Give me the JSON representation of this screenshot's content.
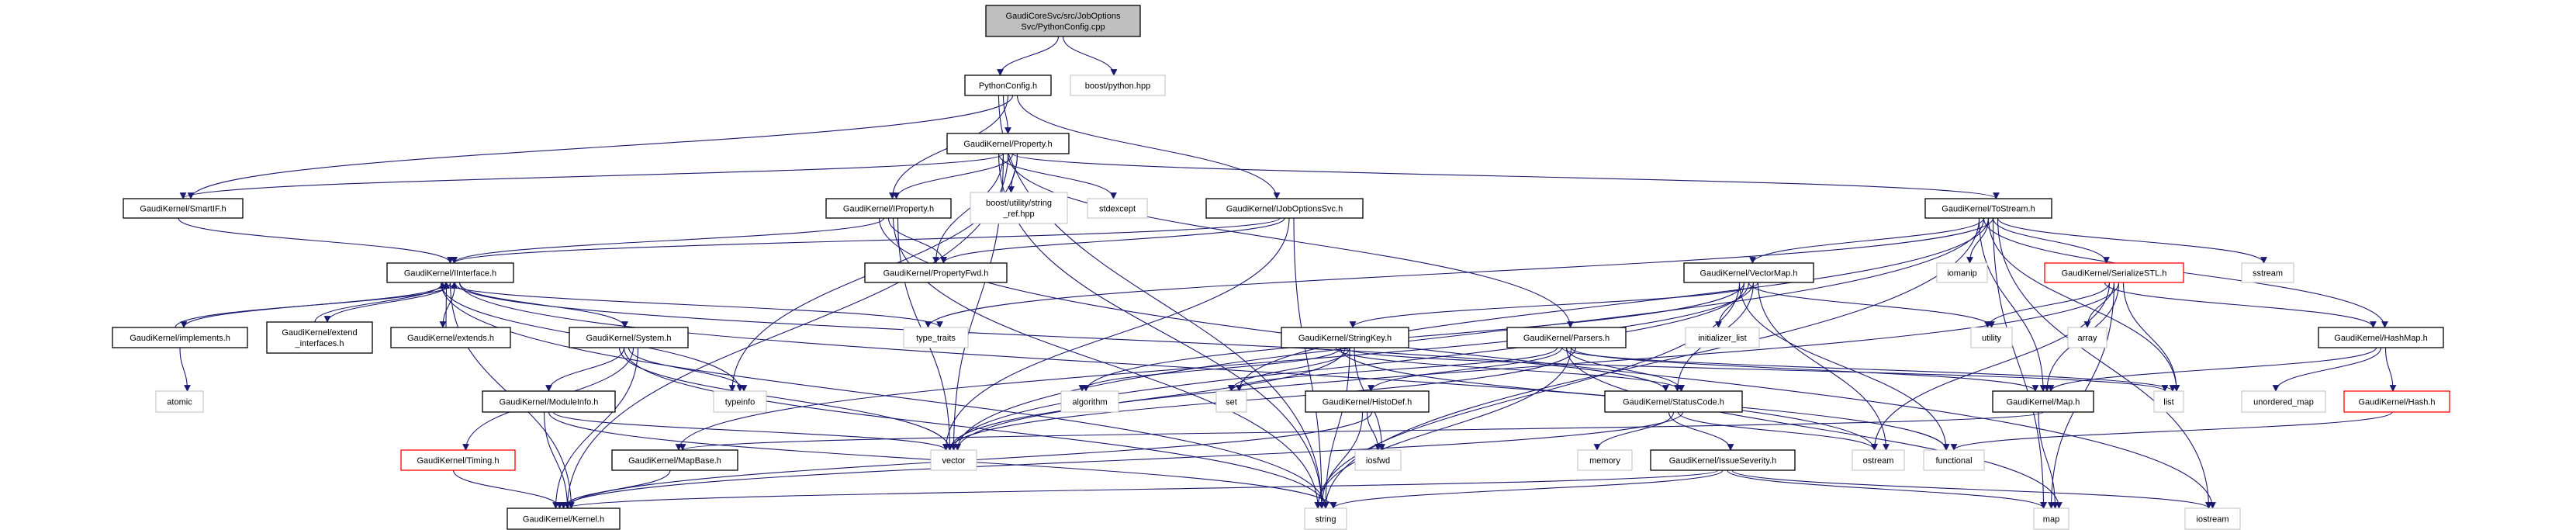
{
  "graph": {
    "edge_color": "#191970",
    "colors": {
      "root_fill": "#bfbfbf",
      "documented_border": "#000000",
      "external_border": "#bfbfbf",
      "incomplete_border": "#ff0000"
    },
    "nodes": [
      {
        "id": "root",
        "label": [
          "GaudiCoreSvc/src/JobOptions",
          "Svc/PythonConfig.cpp"
        ],
        "kind": "root"
      },
      {
        "id": "pyconf",
        "label": [
          "PythonConfig.h"
        ],
        "kind": "doc"
      },
      {
        "id": "boostpy",
        "label": [
          "boost/python.hpp"
        ],
        "kind": "ext"
      },
      {
        "id": "property",
        "label": [
          "GaudiKernel/Property.h"
        ],
        "kind": "doc"
      },
      {
        "id": "smartif",
        "label": [
          "GaudiKernel/SmartIF.h"
        ],
        "kind": "doc"
      },
      {
        "id": "iproperty",
        "label": [
          "GaudiKernel/IProperty.h"
        ],
        "kind": "doc"
      },
      {
        "id": "stringref",
        "label": [
          "boost/utility/string",
          "_ref.hpp"
        ],
        "kind": "ext"
      },
      {
        "id": "stdexcept",
        "label": [
          "stdexcept"
        ],
        "kind": "ext"
      },
      {
        "id": "ijobopt",
        "label": [
          "GaudiKernel/IJobOptionsSvc.h"
        ],
        "kind": "doc"
      },
      {
        "id": "tostream",
        "label": [
          "GaudiKernel/ToStream.h"
        ],
        "kind": "doc"
      },
      {
        "id": "iinterface",
        "label": [
          "GaudiKernel/IInterface.h"
        ],
        "kind": "doc"
      },
      {
        "id": "propfwd",
        "label": [
          "GaudiKernel/PropertyFwd.h"
        ],
        "kind": "doc"
      },
      {
        "id": "vectormap",
        "label": [
          "GaudiKernel/VectorMap.h"
        ],
        "kind": "doc"
      },
      {
        "id": "iomanip",
        "label": [
          "iomanip"
        ],
        "kind": "ext"
      },
      {
        "id": "serialize",
        "label": [
          "GaudiKernel/SerializeSTL.h"
        ],
        "kind": "red"
      },
      {
        "id": "sstream",
        "label": [
          "sstream"
        ],
        "kind": "ext"
      },
      {
        "id": "implements",
        "label": [
          "GaudiKernel/implements.h"
        ],
        "kind": "doc"
      },
      {
        "id": "extendif",
        "label": [
          "GaudiKernel/extend",
          "_interfaces.h"
        ],
        "kind": "doc"
      },
      {
        "id": "extends",
        "label": [
          "GaudiKernel/extends.h"
        ],
        "kind": "doc"
      },
      {
        "id": "system",
        "label": [
          "GaudiKernel/System.h"
        ],
        "kind": "doc"
      },
      {
        "id": "typetraits",
        "label": [
          "type_traits"
        ],
        "kind": "ext"
      },
      {
        "id": "stringkey",
        "label": [
          "GaudiKernel/StringKey.h"
        ],
        "kind": "doc"
      },
      {
        "id": "parsers",
        "label": [
          "GaudiKernel/Parsers.h"
        ],
        "kind": "doc"
      },
      {
        "id": "initlist",
        "label": [
          "initializer_list"
        ],
        "kind": "ext"
      },
      {
        "id": "utility",
        "label": [
          "utility"
        ],
        "kind": "ext"
      },
      {
        "id": "array",
        "label": [
          "array"
        ],
        "kind": "ext"
      },
      {
        "id": "hashmap",
        "label": [
          "GaudiKernel/HashMap.h"
        ],
        "kind": "doc"
      },
      {
        "id": "atomic",
        "label": [
          "atomic"
        ],
        "kind": "ext"
      },
      {
        "id": "moduleinfo",
        "label": [
          "GaudiKernel/ModuleInfo.h"
        ],
        "kind": "doc"
      },
      {
        "id": "typeinfo",
        "label": [
          "typeinfo"
        ],
        "kind": "ext"
      },
      {
        "id": "algorithm",
        "label": [
          "algorithm"
        ],
        "kind": "ext"
      },
      {
        "id": "set",
        "label": [
          "set"
        ],
        "kind": "ext"
      },
      {
        "id": "histodef",
        "label": [
          "GaudiKernel/HistoDef.h"
        ],
        "kind": "doc"
      },
      {
        "id": "statuscode",
        "label": [
          "GaudiKernel/StatusCode.h"
        ],
        "kind": "doc"
      },
      {
        "id": "map_h",
        "label": [
          "GaudiKernel/Map.h"
        ],
        "kind": "doc"
      },
      {
        "id": "list",
        "label": [
          "list"
        ],
        "kind": "ext"
      },
      {
        "id": "unorderedmap",
        "label": [
          "unordered_map"
        ],
        "kind": "ext"
      },
      {
        "id": "hash",
        "label": [
          "GaudiKernel/Hash.h"
        ],
        "kind": "red"
      },
      {
        "id": "timing",
        "label": [
          "GaudiKernel/Timing.h"
        ],
        "kind": "red"
      },
      {
        "id": "mapbase",
        "label": [
          "GaudiKernel/MapBase.h"
        ],
        "kind": "doc"
      },
      {
        "id": "vector",
        "label": [
          "vector"
        ],
        "kind": "ext"
      },
      {
        "id": "iosfwd",
        "label": [
          "iosfwd"
        ],
        "kind": "ext"
      },
      {
        "id": "memory",
        "label": [
          "memory"
        ],
        "kind": "ext"
      },
      {
        "id": "issuesev",
        "label": [
          "GaudiKernel/IssueSeverity.h"
        ],
        "kind": "doc"
      },
      {
        "id": "ostream",
        "label": [
          "ostream"
        ],
        "kind": "ext"
      },
      {
        "id": "functional",
        "label": [
          "functional"
        ],
        "kind": "ext"
      },
      {
        "id": "kernel",
        "label": [
          "GaudiKernel/Kernel.h"
        ],
        "kind": "doc"
      },
      {
        "id": "string",
        "label": [
          "string"
        ],
        "kind": "ext"
      },
      {
        "id": "map",
        "label": [
          "map"
        ],
        "kind": "ext"
      },
      {
        "id": "iostream",
        "label": [
          "iostream"
        ],
        "kind": "ext"
      }
    ],
    "edges": [
      [
        "root",
        "pyconf"
      ],
      [
        "root",
        "boostpy"
      ],
      [
        "pyconf",
        "property"
      ],
      [
        "pyconf",
        "iproperty"
      ],
      [
        "pyconf",
        "smartif"
      ],
      [
        "pyconf",
        "ijobopt"
      ],
      [
        "pyconf",
        "string"
      ],
      [
        "property",
        "smartif"
      ],
      [
        "property",
        "kernel"
      ],
      [
        "property",
        "iproperty"
      ],
      [
        "property",
        "stringref"
      ],
      [
        "property",
        "stdexcept"
      ],
      [
        "property",
        "propfwd"
      ],
      [
        "property",
        "parsers"
      ],
      [
        "property",
        "tostream"
      ],
      [
        "property",
        "typeinfo"
      ],
      [
        "property",
        "string"
      ],
      [
        "property",
        "vector"
      ],
      [
        "iproperty",
        "iinterface"
      ],
      [
        "iproperty",
        "propfwd"
      ],
      [
        "iproperty",
        "string"
      ],
      [
        "iproperty",
        "vector"
      ],
      [
        "iproperty",
        "iostream"
      ],
      [
        "ijobopt",
        "iinterface"
      ],
      [
        "ijobopt",
        "propfwd"
      ],
      [
        "ijobopt",
        "vector"
      ],
      [
        "ijobopt",
        "string"
      ],
      [
        "smartif",
        "iinterface"
      ],
      [
        "iinterface",
        "implements"
      ],
      [
        "iinterface",
        "extendif"
      ],
      [
        "iinterface",
        "extends"
      ],
      [
        "iinterface",
        "system"
      ],
      [
        "iinterface",
        "typeinfo"
      ],
      [
        "iinterface",
        "typetraits"
      ],
      [
        "iinterface",
        "kernel"
      ],
      [
        "iinterface",
        "statuscode"
      ],
      [
        "iinterface",
        "ostream"
      ],
      [
        "iinterface",
        "string"
      ],
      [
        "implements",
        "iinterface"
      ],
      [
        "implements",
        "atomic"
      ],
      [
        "extendif",
        "iinterface"
      ],
      [
        "extends",
        "iinterface"
      ],
      [
        "system",
        "moduleinfo"
      ],
      [
        "system",
        "typeinfo"
      ],
      [
        "system",
        "timing"
      ],
      [
        "system",
        "kernel"
      ],
      [
        "system",
        "vector"
      ],
      [
        "system",
        "string"
      ],
      [
        "moduleinfo",
        "kernel"
      ],
      [
        "moduleinfo",
        "string"
      ],
      [
        "moduleinfo",
        "vector"
      ],
      [
        "timing",
        "kernel"
      ],
      [
        "mapbase",
        "kernel"
      ],
      [
        "tostream",
        "vectormap"
      ],
      [
        "tostream",
        "iomanip"
      ],
      [
        "tostream",
        "serialize"
      ],
      [
        "tostream",
        "sstream"
      ],
      [
        "tostream",
        "map_h"
      ],
      [
        "tostream",
        "hashmap"
      ],
      [
        "tostream",
        "list"
      ],
      [
        "tostream",
        "map"
      ],
      [
        "tostream",
        "iostream"
      ],
      [
        "tostream",
        "string"
      ],
      [
        "tostream",
        "vector"
      ],
      [
        "tostream",
        "set"
      ],
      [
        "tostream",
        "typetraits"
      ],
      [
        "vectormap",
        "initlist"
      ],
      [
        "vectormap",
        "utility"
      ],
      [
        "vectormap",
        "statuscode"
      ],
      [
        "vectormap",
        "ostream"
      ],
      [
        "vectormap",
        "functional"
      ],
      [
        "vectormap",
        "algorithm"
      ],
      [
        "vectormap",
        "vector"
      ],
      [
        "vectormap",
        "mapbase"
      ],
      [
        "vectormap",
        "stringkey"
      ],
      [
        "vectormap",
        "string"
      ],
      [
        "serialize",
        "utility"
      ],
      [
        "serialize",
        "array"
      ],
      [
        "serialize",
        "map_h"
      ],
      [
        "serialize",
        "list"
      ],
      [
        "serialize",
        "hashmap"
      ],
      [
        "serialize",
        "ostream"
      ],
      [
        "serialize",
        "map"
      ],
      [
        "serialize",
        "vector"
      ],
      [
        "hashmap",
        "map_h"
      ],
      [
        "hashmap",
        "unorderedmap"
      ],
      [
        "hashmap",
        "hash"
      ],
      [
        "hash",
        "functional"
      ],
      [
        "map_h",
        "map"
      ],
      [
        "map_h",
        "mapbase"
      ],
      [
        "stringkey",
        "algorithm"
      ],
      [
        "stringkey",
        "vector"
      ],
      [
        "stringkey",
        "string"
      ],
      [
        "stringkey",
        "iosfwd"
      ],
      [
        "stringkey",
        "statuscode"
      ],
      [
        "stringkey",
        "functional"
      ],
      [
        "stringkey",
        "list"
      ],
      [
        "stringkey",
        "set"
      ],
      [
        "parsers",
        "histodef"
      ],
      [
        "parsers",
        "statuscode"
      ],
      [
        "parsers",
        "string"
      ],
      [
        "parsers",
        "vector"
      ],
      [
        "parsers",
        "set"
      ],
      [
        "parsers",
        "list"
      ],
      [
        "parsers",
        "map"
      ],
      [
        "parsers",
        "map_h"
      ],
      [
        "histodef",
        "string"
      ],
      [
        "histodef",
        "iosfwd"
      ],
      [
        "histodef",
        "kernel"
      ],
      [
        "statuscode",
        "issuesev"
      ],
      [
        "statuscode",
        "memory"
      ],
      [
        "statuscode",
        "ostream"
      ],
      [
        "statuscode",
        "kernel"
      ],
      [
        "issuesev",
        "kernel"
      ],
      [
        "issuesev",
        "string"
      ],
      [
        "issuesev",
        "map"
      ],
      [
        "issuesev",
        "iostream"
      ]
    ]
  }
}
